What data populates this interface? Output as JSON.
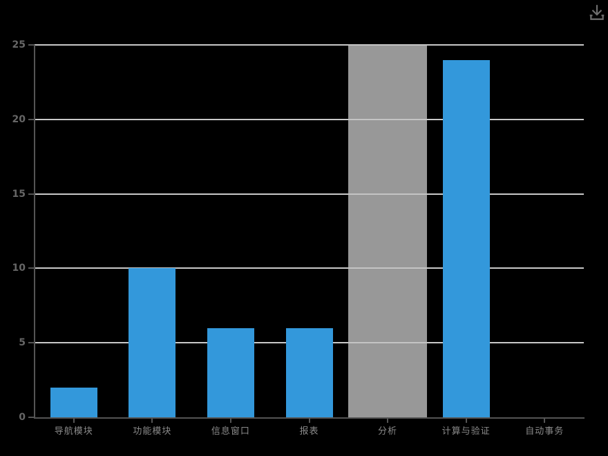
{
  "window": {
    "background": "#000000"
  },
  "toolbox": {
    "save_as_image_icon": "download-icon"
  },
  "colors": {
    "background": "#000000",
    "bar": "#3398db",
    "highlight_band": "rgba(195,195,195,0.78)",
    "gridline": "#c9c9c9",
    "axis": "#555555",
    "y_label": "#666666",
    "x_label": "#8a8a8a",
    "icon": "#6f6f6f"
  },
  "chart_data": {
    "type": "bar",
    "title": "",
    "xlabel": "",
    "ylabel": "",
    "categories": [
      "导航模块",
      "功能模块",
      "信息窗口",
      "报表",
      "分析",
      "计算与验证",
      "自动事务"
    ],
    "values": [
      2,
      10,
      6,
      6,
      null,
      24,
      0
    ],
    "y_ticks": [
      0,
      5,
      10,
      15,
      20,
      25
    ],
    "ylim": [
      0,
      25
    ],
    "grid": true,
    "legend": false,
    "highlight_band": {
      "category": "分析",
      "index": 4,
      "style": "full-height translucent axis-pointer shadow; underlying bar value not visible",
      "covers_full_category_width": true
    }
  }
}
